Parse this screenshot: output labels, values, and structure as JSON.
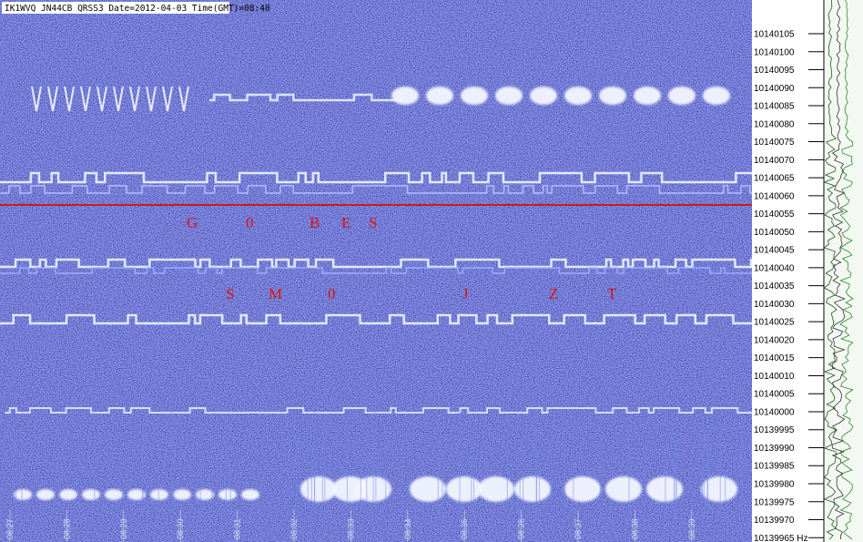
{
  "header": "IK1WVQ JN44CB QRSS3  Date=2012-04-03 Time(GMT)=08:40",
  "frequency_labels": [
    "10140105",
    "10140100",
    "10140095",
    "10140090",
    "10140085",
    "10140080",
    "10140075",
    "10140070",
    "10140065",
    "10140060",
    "10140055",
    "10140050",
    "10140045",
    "10140040",
    "10140035",
    "10140030",
    "10140025",
    "10140020",
    "10140015",
    "10140010",
    "10140005",
    "10140000",
    "10139995",
    "10139990",
    "10139985",
    "10139980",
    "10139975",
    "10139970",
    "10139965 Hz"
  ],
  "time_labels": [
    "08:27",
    "08:28",
    "08:29",
    "08:30",
    "08:31",
    "08:32",
    "08:33",
    "08:34",
    "08:35",
    "08:36",
    "08:37",
    "08:38",
    "08:39"
  ],
  "callsigns": [
    {
      "letters": [
        "G",
        "0",
        "B",
        "E",
        "S"
      ]
    },
    {
      "letters": [
        "S",
        "M",
        "0",
        "J",
        "Z",
        "T"
      ]
    }
  ]
}
